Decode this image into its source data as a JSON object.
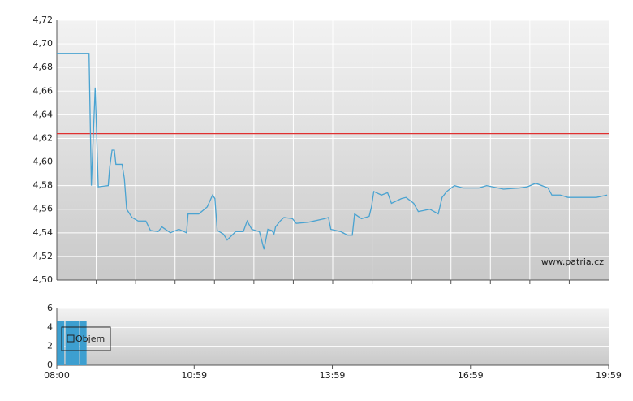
{
  "chart_data": [
    {
      "type": "line",
      "annotation": "www.patria.cz",
      "xlim": [
        0,
        719
      ],
      "ylim": [
        4.5,
        4.72
      ],
      "yticks": [
        {
          "value": 4.5,
          "label": "4,50"
        },
        {
          "value": 4.52,
          "label": "4,52"
        },
        {
          "value": 4.54,
          "label": "4,54"
        },
        {
          "value": 4.56,
          "label": "4,56"
        },
        {
          "value": 4.58,
          "label": "4,58"
        },
        {
          "value": 4.6,
          "label": "4,60"
        },
        {
          "value": 4.62,
          "label": "4,62"
        },
        {
          "value": 4.64,
          "label": "4,64"
        },
        {
          "value": 4.66,
          "label": "4,66"
        },
        {
          "value": 4.68,
          "label": "4,68"
        },
        {
          "value": 4.7,
          "label": "4,70"
        },
        {
          "value": 4.72,
          "label": "4,72"
        }
      ],
      "grid": true,
      "reference_line": {
        "value": 4.624,
        "color": "#e03030"
      },
      "series": [
        {
          "color": "#4aa3d1",
          "x": [
            0,
            42,
            45,
            50,
            54,
            67,
            69,
            72,
            75,
            77,
            85,
            88,
            91,
            98,
            106,
            116,
            122,
            132,
            137,
            148,
            159,
            169,
            171,
            185,
            196,
            203,
            206,
            209,
            217,
            222,
            233,
            243,
            248,
            254,
            264,
            270,
            275,
            280,
            283,
            285,
            291,
            296,
            307,
            312,
            328,
            349,
            354,
            357,
            370,
            379,
            385,
            388,
            397,
            407,
            410,
            413,
            423,
            431,
            436,
            449,
            455,
            465,
            471,
            486,
            497,
            502,
            508,
            518,
            529,
            550,
            560,
            582,
            603,
            613,
            624,
            640,
            645,
            656,
            666,
            687,
            703,
            717
          ],
          "values": [
            4.692,
            4.692,
            4.58,
            4.663,
            4.579,
            4.58,
            4.596,
            4.61,
            4.61,
            4.598,
            4.598,
            4.586,
            4.56,
            4.553,
            4.55,
            4.55,
            4.542,
            4.541,
            4.545,
            4.54,
            4.543,
            4.54,
            4.556,
            4.556,
            4.562,
            4.572,
            4.569,
            4.542,
            4.539,
            4.534,
            4.541,
            4.541,
            4.55,
            4.543,
            4.541,
            4.526,
            4.543,
            4.542,
            4.539,
            4.545,
            4.55,
            4.553,
            4.552,
            4.548,
            4.549,
            4.552,
            4.553,
            4.543,
            4.541,
            4.538,
            4.538,
            4.556,
            4.552,
            4.554,
            4.562,
            4.575,
            4.572,
            4.574,
            4.565,
            4.569,
            4.57,
            4.565,
            4.558,
            4.56,
            4.556,
            4.57,
            4.575,
            4.58,
            4.578,
            4.578,
            4.58,
            4.577,
            4.578,
            4.579,
            4.582,
            4.578,
            4.572,
            4.572,
            4.57,
            4.57,
            4.57,
            4.572
          ]
        }
      ]
    },
    {
      "type": "bar",
      "xlim": [
        0,
        719
      ],
      "xticks": [
        {
          "value": 0,
          "label": "08:00"
        },
        {
          "value": 179,
          "label": "10:59"
        },
        {
          "value": 359,
          "label": "13:59"
        },
        {
          "value": 539,
          "label": "16:59"
        },
        {
          "value": 719,
          "label": "19:59"
        }
      ],
      "ylim": [
        0,
        6
      ],
      "yticks": [
        0,
        2,
        4,
        6
      ],
      "grid": true,
      "legend": "left",
      "series": [
        {
          "name": "Objem",
          "color": "#3d9fd0",
          "x": [
            5,
            16,
            24,
            34
          ],
          "values": [
            4.7,
            4.7,
            4.7,
            4.7
          ]
        }
      ]
    }
  ]
}
